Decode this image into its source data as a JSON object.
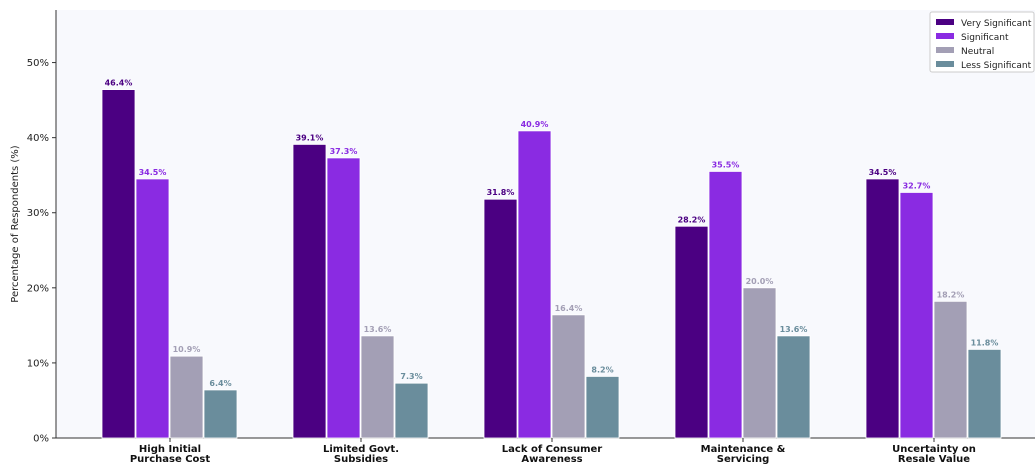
{
  "chart_data": {
    "type": "bar",
    "title": "",
    "xlabel": "",
    "ylabel": "Percentage of Respondents (%)",
    "ylim": [
      0,
      57
    ],
    "yticks": [
      0,
      10,
      20,
      30,
      40,
      50
    ],
    "ytick_labels": [
      "0%",
      "10%",
      "20%",
      "30%",
      "40%",
      "50%"
    ],
    "grid": false,
    "legend_position": "top-right",
    "categories": [
      [
        "High Initial",
        "Purchase Cost"
      ],
      [
        "Limited Govt.",
        "Subsidies"
      ],
      [
        "Lack of Consumer",
        "Awareness"
      ],
      [
        "Maintenance &",
        "Servicing"
      ],
      [
        "Uncertainty on",
        "Resale Value"
      ]
    ],
    "series": [
      {
        "name": "Very Significant",
        "color": "#4b0082",
        "values": [
          46.4,
          39.1,
          31.8,
          28.2,
          34.5
        ],
        "labels": [
          "46.4%",
          "39.1%",
          "31.8%",
          "28.2%",
          "34.5%"
        ]
      },
      {
        "name": "Significant",
        "color": "#8a2be2",
        "values": [
          34.5,
          37.3,
          40.9,
          35.5,
          32.7
        ],
        "labels": [
          "34.5%",
          "37.3%",
          "40.9%",
          "35.5%",
          "32.7%"
        ]
      },
      {
        "name": "Neutral",
        "color": "#a39fb5",
        "values": [
          10.9,
          13.6,
          16.4,
          20.0,
          18.2
        ],
        "labels": [
          "10.9%",
          "13.6%",
          "16.4%",
          "20.0%",
          "18.2%"
        ]
      },
      {
        "name": "Less Significant",
        "color": "#6a8d9c",
        "values": [
          6.4,
          7.3,
          8.2,
          13.6,
          11.8
        ],
        "labels": [
          "6.4%",
          "7.3%",
          "8.2%",
          "13.6%",
          "11.8%"
        ]
      }
    ],
    "plot_background": "#f8f9fd"
  }
}
